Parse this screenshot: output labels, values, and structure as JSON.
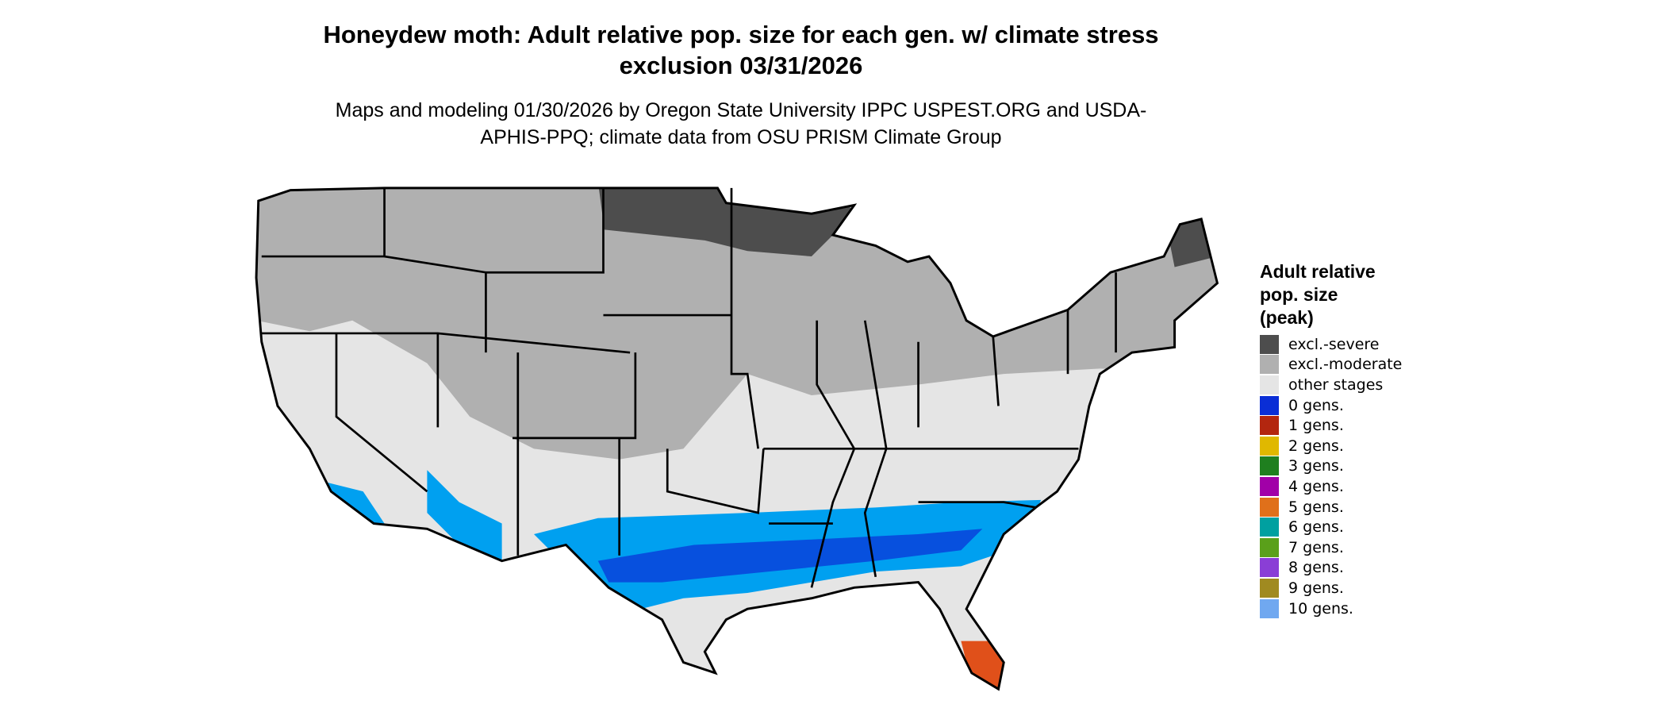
{
  "title": "Honeydew moth: Adult relative pop. size for each gen. w/ climate stress exclusion 03/31/2026",
  "subtitle": "Maps and modeling 01/30/2026 by Oregon State University IPPC USPEST.ORG and USDA-APHIS-PPQ; climate data from OSU PRISM Climate Group",
  "legend": {
    "title": "Adult relative pop. size (peak)",
    "items": [
      {
        "label": "excl.-severe",
        "color": "#4d4d4d"
      },
      {
        "label": "excl.-moderate",
        "color": "#b0b0b0"
      },
      {
        "label": "other stages",
        "color": "#e5e5e5"
      },
      {
        "label": "0 gens.",
        "color": "#0a2ed6"
      },
      {
        "label": "1 gens.",
        "color": "#b3260f"
      },
      {
        "label": "2 gens.",
        "color": "#e0b800"
      },
      {
        "label": "3 gens.",
        "color": "#1f7f1f"
      },
      {
        "label": "4 gens.",
        "color": "#a100a8"
      },
      {
        "label": "5 gens.",
        "color": "#e0701a"
      },
      {
        "label": "6 gens.",
        "color": "#00a0a0"
      },
      {
        "label": "7 gens.",
        "color": "#5aa01a"
      },
      {
        "label": "8 gens.",
        "color": "#8a3ed6"
      },
      {
        "label": "9 gens.",
        "color": "#a08a20"
      },
      {
        "label": "10 gens.",
        "color": "#70a8f0"
      }
    ]
  }
}
